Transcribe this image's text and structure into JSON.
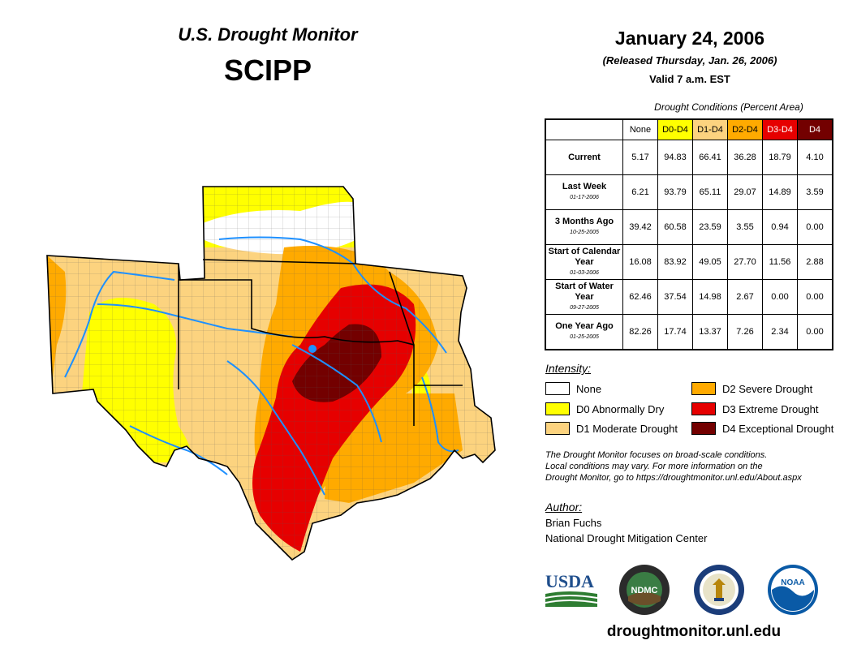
{
  "header": {
    "title": "U.S. Drought Monitor",
    "region": "SCIPP",
    "date": "January 24, 2006",
    "released": "(Released Thursday, Jan. 26, 2006)",
    "valid": "Valid 7 a.m. EST"
  },
  "table": {
    "caption": "Drought Conditions (Percent Area)",
    "columns": [
      "None",
      "D0-D4",
      "D1-D4",
      "D2-D4",
      "D3-D4",
      "D4"
    ],
    "rows": [
      {
        "label": "Current",
        "date": "",
        "values": [
          "5.17",
          "94.83",
          "66.41",
          "36.28",
          "18.79",
          "4.10"
        ]
      },
      {
        "label": "Last Week",
        "date": "01-17-2006",
        "values": [
          "6.21",
          "93.79",
          "65.11",
          "29.07",
          "14.89",
          "3.59"
        ]
      },
      {
        "label": "3 Months Ago",
        "date": "10-25-2005",
        "values": [
          "39.42",
          "60.58",
          "23.59",
          "3.55",
          "0.94",
          "0.00"
        ]
      },
      {
        "label": "Start of Calendar Year",
        "date": "01-03-2006",
        "values": [
          "16.08",
          "83.92",
          "49.05",
          "27.70",
          "11.56",
          "2.88"
        ]
      },
      {
        "label": "Start of Water Year",
        "date": "09-27-2005",
        "values": [
          "62.46",
          "37.54",
          "14.98",
          "2.67",
          "0.00",
          "0.00"
        ]
      },
      {
        "label": "One Year Ago",
        "date": "01-25-2005",
        "values": [
          "82.26",
          "17.74",
          "13.37",
          "7.26",
          "2.34",
          "0.00"
        ]
      }
    ]
  },
  "legend": {
    "title": "Intensity:",
    "items": [
      {
        "label": "None",
        "color": "#ffffff"
      },
      {
        "label": "D0 Abnormally Dry",
        "color": "#ffff00"
      },
      {
        "label": "D1 Moderate Drought",
        "color": "#fcd37f"
      },
      {
        "label": "D2 Severe Drought",
        "color": "#ffaa00"
      },
      {
        "label": "D3 Extreme Drought",
        "color": "#e60000"
      },
      {
        "label": "D4 Exceptional Drought",
        "color": "#730000"
      }
    ]
  },
  "note": {
    "line1": "The Drought Monitor focuses on broad-scale conditions.",
    "line2": "Local conditions may vary. For more information on the",
    "line3": "Drought Monitor, go to https://droughtmonitor.unl.edu/About.aspx"
  },
  "author": {
    "title": "Author:",
    "name": "Brian Fuchs",
    "org": "National Drought Mitigation Center"
  },
  "logos": {
    "usda": "USDA",
    "ndmc": "NDMC",
    "noaa": "NOAA"
  },
  "footer": {
    "url": "droughtmonitor.unl.edu"
  },
  "colors": {
    "none": "#ffffff",
    "d0": "#ffff00",
    "d1": "#fcd37f",
    "d2": "#ffaa00",
    "d3": "#e60000",
    "d4": "#730000",
    "water": "#1e90ff"
  }
}
